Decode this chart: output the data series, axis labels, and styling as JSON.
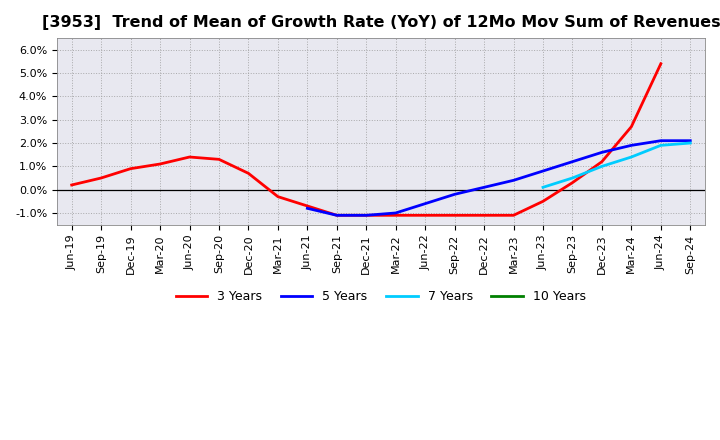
{
  "title": "[3953]  Trend of Mean of Growth Rate (YoY) of 12Mo Mov Sum of Revenues",
  "title_fontsize": 11.5,
  "background_color": "#ffffff",
  "plot_bg_color": "#e8e8f0",
  "grid_color": "#999999",
  "ylim": [
    -0.015,
    0.065
  ],
  "yticks": [
    -0.01,
    0.0,
    0.01,
    0.02,
    0.03,
    0.04,
    0.05,
    0.06
  ],
  "x_labels": [
    "Jun-19",
    "Sep-19",
    "Dec-19",
    "Mar-20",
    "Jun-20",
    "Sep-20",
    "Dec-20",
    "Mar-21",
    "Jun-21",
    "Sep-21",
    "Dec-21",
    "Mar-22",
    "Jun-22",
    "Sep-22",
    "Dec-22",
    "Mar-23",
    "Jun-23",
    "Sep-23",
    "Dec-23",
    "Mar-24",
    "Jun-24",
    "Sep-24"
  ],
  "series": {
    "3 Years": {
      "color": "#ff0000",
      "linewidth": 2.0,
      "values": [
        0.002,
        0.005,
        0.009,
        0.011,
        0.014,
        0.013,
        0.007,
        -0.003,
        -0.007,
        -0.011,
        -0.011,
        -0.011,
        -0.011,
        -0.011,
        -0.011,
        -0.011,
        -0.005,
        0.003,
        0.012,
        0.027,
        0.054,
        null
      ]
    },
    "5 Years": {
      "color": "#0000ff",
      "linewidth": 2.0,
      "values": [
        null,
        null,
        null,
        null,
        null,
        null,
        null,
        null,
        -0.008,
        -0.011,
        -0.011,
        -0.01,
        -0.006,
        -0.002,
        0.001,
        0.004,
        0.008,
        0.012,
        0.016,
        0.019,
        0.021,
        0.021
      ]
    },
    "7 Years": {
      "color": "#00ccff",
      "linewidth": 2.0,
      "values": [
        null,
        null,
        null,
        null,
        null,
        null,
        null,
        null,
        null,
        null,
        null,
        null,
        null,
        null,
        null,
        null,
        0.001,
        0.005,
        0.01,
        0.014,
        0.019,
        0.02
      ]
    },
    "10 Years": {
      "color": "#008000",
      "linewidth": 2.0,
      "values": [
        null,
        null,
        null,
        null,
        null,
        null,
        null,
        null,
        null,
        null,
        null,
        null,
        null,
        null,
        null,
        null,
        null,
        null,
        null,
        null,
        null,
        null
      ]
    }
  },
  "legend_labels": [
    "3 Years",
    "5 Years",
    "7 Years",
    "10 Years"
  ],
  "legend_colors": [
    "#ff0000",
    "#0000ff",
    "#00ccff",
    "#008000"
  ]
}
